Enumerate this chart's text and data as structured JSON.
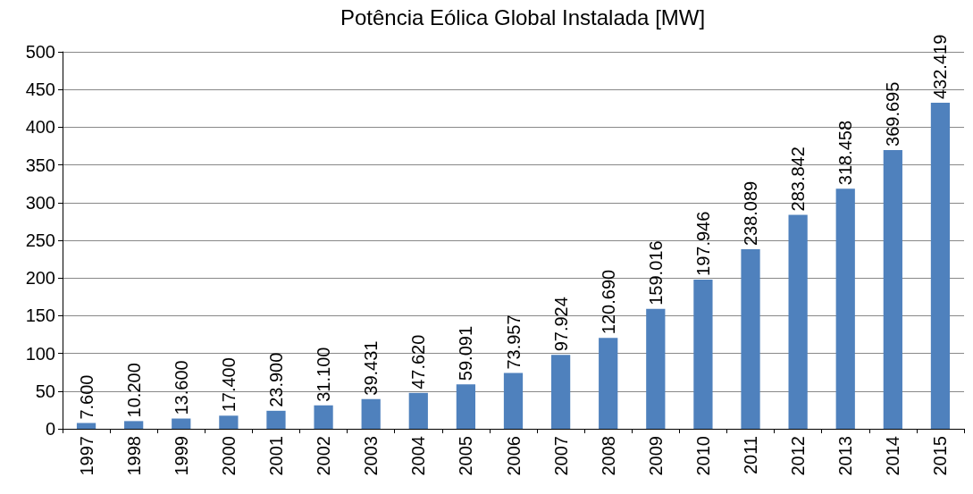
{
  "chart_data": {
    "type": "bar",
    "title": "Potência Eólica Global Instalada [MW]",
    "categories": [
      "1997",
      "1998",
      "1999",
      "2000",
      "2001",
      "2002",
      "2003",
      "2004",
      "2005",
      "2006",
      "2007",
      "2008",
      "2009",
      "2010",
      "2011",
      "2012",
      "2013",
      "2014",
      "2015"
    ],
    "values": [
      7.6,
      10.2,
      13.6,
      17.4,
      23.9,
      31.1,
      39.431,
      47.62,
      59.091,
      73.957,
      97.924,
      120.69,
      159.016,
      197.946,
      238.089,
      283.842,
      318.458,
      369.695,
      432.419
    ],
    "value_labels": [
      "7.600",
      "10.200",
      "13.600",
      "17.400",
      "23.900",
      "31.100",
      "39.431",
      "47.620",
      "59.091",
      "73.957",
      "97.924",
      "120.690",
      "159.016",
      "197.946",
      "238.089",
      "283.842",
      "318.458",
      "369.695",
      "432.419"
    ],
    "color": "#4f81bd",
    "ylim": [
      0,
      500
    ],
    "yticks": [
      0,
      50,
      100,
      150,
      200,
      250,
      300,
      350,
      400,
      450,
      500
    ],
    "grid": "y"
  }
}
